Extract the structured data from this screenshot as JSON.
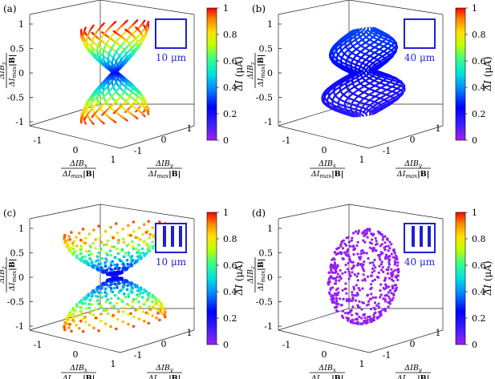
{
  "figure": {
    "colorbar_ticks": [
      "0",
      "0.2",
      "0.4",
      "0.6",
      "0.8",
      "1"
    ],
    "colorbar_title_parts": [
      "ΔI",
      "(μA)"
    ],
    "axis_tick_labels": {
      "x": [
        "-1",
        "0",
        "1"
      ],
      "y": [
        "-1",
        "0",
        "1"
      ],
      "z": [
        "-1",
        "-0.5",
        "0",
        "0.5",
        "1"
      ]
    },
    "x_label": {
      "num": "ΔIB",
      "num_sub": "x",
      "den": "ΔI",
      "den_sub": "max",
      "den_b": "|B|"
    },
    "y_label": {
      "num": "ΔIB",
      "num_sub": "y",
      "den": "ΔI",
      "den_sub": "max",
      "den_b": "|B|"
    },
    "z_label": {
      "num": "ΔIB",
      "num_sub": "z",
      "den": "ΔI",
      "den_sub": "max",
      "den_b": "|B|"
    }
  },
  "chart_data": [
    {
      "type": "scatter",
      "panel_label": "(a)",
      "scale_bar": "10 μm",
      "electrode": "square",
      "shape": "hourglass-lines",
      "colormap": "jet",
      "colorbar_range": [
        0,
        1
      ],
      "ranges": {
        "x": [
          -1,
          1
        ],
        "y": [
          -1,
          1
        ],
        "z": [
          -1,
          1
        ]
      },
      "current_range_uA": [
        0.25,
        1.0
      ]
    },
    {
      "type": "scatter",
      "panel_label": "(b)",
      "scale_bar": "40 μm",
      "electrode": "square",
      "shape": "double-ball-lines",
      "colormap": "jet",
      "colorbar_range": [
        0,
        1
      ],
      "ranges": {
        "x": [
          -1,
          1
        ],
        "y": [
          -1,
          1
        ],
        "z": [
          -1,
          1
        ]
      },
      "current_range_uA": [
        0.15,
        0.32
      ]
    },
    {
      "type": "scatter",
      "panel_label": "(c)",
      "scale_bar": "10 μm",
      "electrode": "interdigitated",
      "shape": "hourglass-dots",
      "colormap": "jet",
      "colorbar_range": [
        0,
        1
      ],
      "ranges": {
        "x": [
          -1,
          1
        ],
        "y": [
          -1,
          1
        ],
        "z": [
          -1,
          1
        ]
      },
      "current_range_uA": [
        0.2,
        0.95
      ]
    },
    {
      "type": "scatter",
      "panel_label": "(d)",
      "scale_bar": "40 μm",
      "electrode": "interdigitated",
      "shape": "ball-dots",
      "colormap": "jet",
      "colorbar_range": [
        0,
        1
      ],
      "ranges": {
        "x": [
          -1,
          1
        ],
        "y": [
          -1,
          1
        ],
        "z": [
          -1,
          1
        ]
      },
      "current_range_uA": [
        0.0,
        0.03
      ]
    }
  ]
}
